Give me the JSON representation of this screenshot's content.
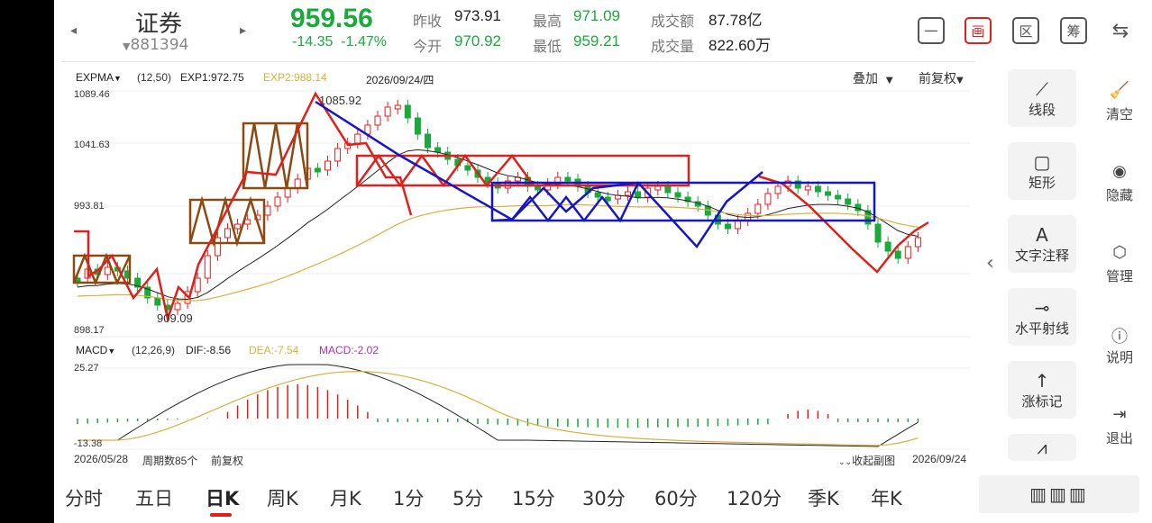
{
  "header": {
    "name": "证券",
    "code": "881394",
    "price": "959.56",
    "change": "-14.35",
    "change_pct": "-1.47%",
    "prev_close_label": "昨收",
    "prev_close": "973.91",
    "open_label": "今开",
    "open": "970.92",
    "high_label": "最高",
    "high": "971.09",
    "low_label": "最低",
    "low": "959.21",
    "amount_label": "成交额",
    "amount": "87.78亿",
    "volume_label": "成交量",
    "volume": "822.60万",
    "icons": [
      "minus-box-icon",
      "draw-icon",
      "region-icon",
      "chip-icon",
      "device-switch-icon"
    ],
    "icon_labels": [
      "一",
      "画",
      "区",
      "筹",
      "⇆"
    ]
  },
  "kline": {
    "indicator": "EXPMA",
    "params": "(12,50)",
    "exp1": "EXP1:972.75",
    "exp2": "EXP2:988.14",
    "date": "2026/09/24/四",
    "overlay_label": "叠加",
    "adjust_label": "前复权",
    "y_labels": [
      "1089.46",
      "1041.63",
      "993.81",
      "898.17"
    ],
    "high_annotation": "1085.92",
    "low_annotation": "909.09"
  },
  "macd": {
    "indicator": "MACD",
    "params": "(12,26,9)",
    "dif": "DIF:-8.56",
    "dea": "DEA:-7.54",
    "macd": "MACD:-2.02",
    "y_top": "25.27",
    "y_bottom": "-13.38"
  },
  "footer": {
    "start_date": "2026/05/28",
    "period_count": "周期数85个",
    "adjust": "前复权",
    "collapse": "收起副图",
    "end_date": "2026/09/24"
  },
  "tools": [
    "线段",
    "矩形",
    "文字注释",
    "水平射线",
    "涨标记"
  ],
  "right_tools": [
    "清空",
    "隐藏",
    "管理",
    "说明",
    "退出"
  ],
  "periods": [
    "分时",
    "五日",
    "日K",
    "周K",
    "月K",
    "1分",
    "5分",
    "15分",
    "30分",
    "60分",
    "120分",
    "季K",
    "年K"
  ],
  "colors": {
    "up": "#e0201c",
    "down": "#1aaa3c",
    "exp2": "#d9b13b",
    "blue_box": "#1616c8",
    "brown_box": "#8b4a12"
  }
}
